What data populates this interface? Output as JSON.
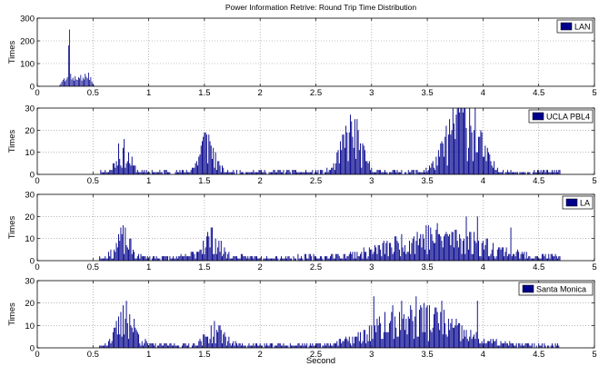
{
  "figure": {
    "title": "Power Information Retrive: Round Trip Time Distribution",
    "xlabel": "Second",
    "bar_color": "#00008b",
    "grid_color": "#8c8c8c"
  },
  "chart_data": [
    {
      "type": "bar",
      "legend": "LAN",
      "legend_position": "top-right",
      "ylabel": "Times",
      "xlim": [
        0,
        5
      ],
      "ylim": [
        0,
        300
      ],
      "xticks": [
        0,
        0.5,
        1,
        1.5,
        2,
        2.5,
        3,
        3.5,
        4,
        4.5,
        5
      ],
      "yticks": [
        0,
        100,
        200,
        300
      ],
      "grid": true,
      "x": [
        0.2,
        0.21,
        0.22,
        0.23,
        0.24,
        0.25,
        0.26,
        0.27,
        0.28,
        0.29,
        0.3,
        0.31,
        0.32,
        0.33,
        0.34,
        0.35,
        0.36,
        0.37,
        0.38,
        0.39,
        0.4,
        0.41,
        0.42,
        0.43,
        0.44,
        0.45,
        0.46,
        0.47,
        0.48,
        0.49,
        0.5,
        0.51
      ],
      "values": [
        4,
        10,
        20,
        28,
        35,
        22,
        30,
        40,
        180,
        250,
        55,
        30,
        38,
        25,
        45,
        30,
        28,
        40,
        35,
        50,
        25,
        38,
        30,
        55,
        42,
        35,
        60,
        28,
        40,
        20,
        10,
        4
      ]
    },
    {
      "type": "bar",
      "legend": "UCLA PBL4",
      "legend_position": "top-right",
      "ylabel": "Times",
      "xlim": [
        0,
        5
      ],
      "ylim": [
        0,
        30
      ],
      "xticks": [
        0,
        0.5,
        1,
        1.5,
        2,
        2.5,
        3,
        3.5,
        4,
        4.5,
        5
      ],
      "yticks": [
        0,
        10,
        20,
        30
      ],
      "grid": true,
      "centers": [
        {
          "mu": 0.77,
          "sd": 0.06,
          "amp": 8
        },
        {
          "mu": 1.52,
          "sd": 0.06,
          "amp": 13
        },
        {
          "mu": 2.82,
          "sd": 0.08,
          "amp": 17
        },
        {
          "mu": 3.82,
          "sd": 0.13,
          "amp": 24
        }
      ],
      "peaks": [
        [
          0.73,
          14
        ],
        [
          1.52,
          18
        ],
        [
          2.82,
          24
        ],
        [
          3.78,
          30
        ],
        [
          3.88,
          30
        ],
        [
          3.93,
          30
        ]
      ],
      "floor": 1.2,
      "seed": 11
    },
    {
      "type": "bar",
      "legend": "LA",
      "legend_position": "top-right",
      "ylabel": "Times",
      "xlim": [
        0,
        5
      ],
      "ylim": [
        0,
        30
      ],
      "xticks": [
        0,
        0.5,
        1,
        1.5,
        2,
        2.5,
        3,
        3.5,
        4,
        4.5,
        5
      ],
      "yticks": [
        0,
        10,
        20,
        30
      ],
      "grid": true,
      "centers": [
        {
          "mu": 0.77,
          "sd": 0.06,
          "amp": 8
        },
        {
          "mu": 1.55,
          "sd": 0.08,
          "amp": 8
        },
        {
          "mu": 3.6,
          "sd": 0.38,
          "amp": 9
        }
      ],
      "peaks": [
        [
          0.73,
          12
        ],
        [
          1.53,
          13
        ],
        [
          3.85,
          20
        ],
        [
          3.95,
          20
        ],
        [
          4.25,
          15
        ]
      ],
      "floor": 1.5,
      "seed": 23
    },
    {
      "type": "bar",
      "legend": "Santa Monica",
      "legend_position": "top-right",
      "ylabel": "Times",
      "xlim": [
        0,
        5
      ],
      "ylim": [
        0,
        30
      ],
      "xticks": [
        0,
        0.5,
        1,
        1.5,
        2,
        2.5,
        3,
        3.5,
        4,
        4.5,
        5
      ],
      "yticks": [
        0,
        10,
        20,
        30
      ],
      "grid": true,
      "centers": [
        {
          "mu": 0.8,
          "sd": 0.08,
          "amp": 11
        },
        {
          "mu": 1.6,
          "sd": 0.08,
          "amp": 6
        },
        {
          "mu": 3.4,
          "sd": 0.32,
          "amp": 12
        }
      ],
      "peaks": [
        [
          0.8,
          21
        ],
        [
          3.02,
          23
        ],
        [
          3.63,
          21
        ],
        [
          3.95,
          21
        ]
      ],
      "floor": 1.2,
      "seed": 37
    }
  ]
}
